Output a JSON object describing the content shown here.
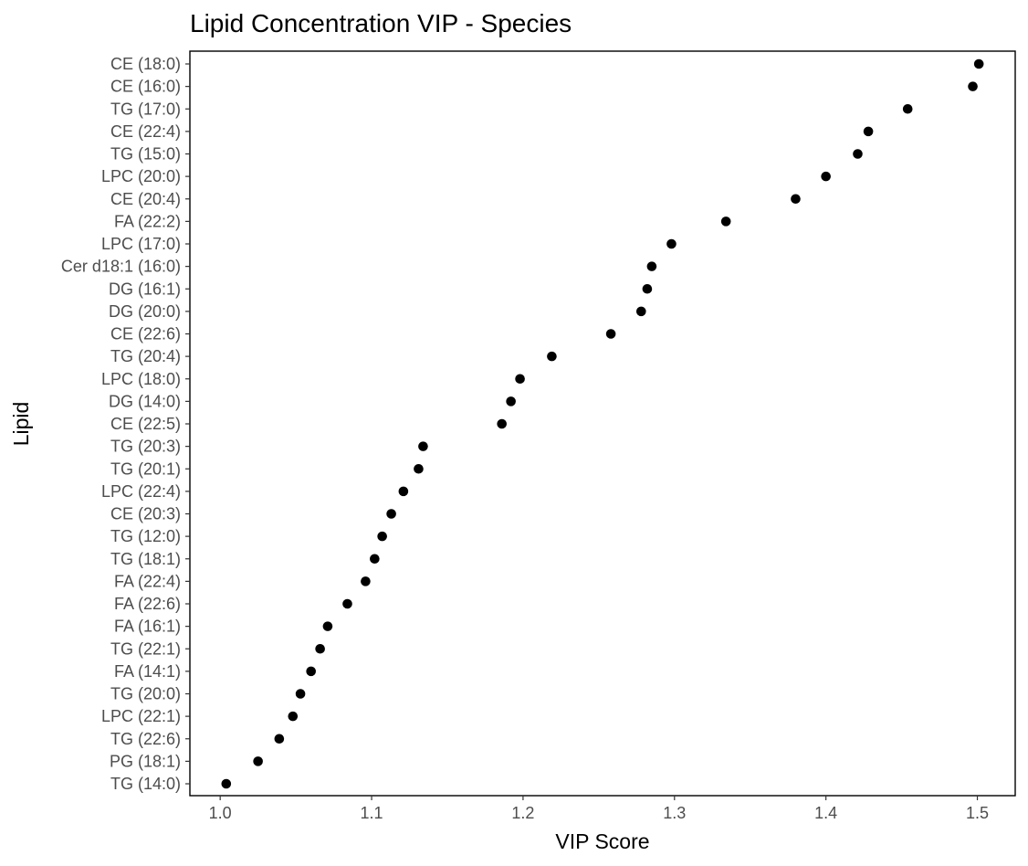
{
  "chart_data": {
    "type": "scatter",
    "title": "Lipid Concentration VIP - Species",
    "xlabel": "VIP Score",
    "ylabel": "Lipid",
    "xlim": [
      0.98,
      1.525
    ],
    "xticks": [
      1.0,
      1.1,
      1.2,
      1.3,
      1.4,
      1.5
    ],
    "xtick_labels": [
      "1.0",
      "1.1",
      "1.2",
      "1.3",
      "1.4",
      "1.5"
    ],
    "grid": false,
    "legend": "none",
    "point_color": "#000000",
    "categories": [
      "CE (18:0)",
      "CE (16:0)",
      "TG (17:0)",
      "CE (22:4)",
      "TG (15:0)",
      "LPC (20:0)",
      "CE (20:4)",
      "FA (22:2)",
      "LPC (17:0)",
      "Cer d18:1 (16:0)",
      "DG (16:1)",
      "DG (20:0)",
      "CE (22:6)",
      "TG (20:4)",
      "LPC (18:0)",
      "DG (14:0)",
      "CE (22:5)",
      "TG (20:3)",
      "TG (20:1)",
      "LPC (22:4)",
      "CE (20:3)",
      "TG (12:0)",
      "TG (18:1)",
      "FA (22:4)",
      "FA (22:6)",
      "FA (16:1)",
      "TG (22:1)",
      "FA (14:1)",
      "TG (20:0)",
      "LPC (22:1)",
      "TG (22:6)",
      "PG (18:1)",
      "TG (14:0)"
    ],
    "values": [
      1.501,
      1.497,
      1.454,
      1.428,
      1.421,
      1.4,
      1.38,
      1.334,
      1.298,
      1.285,
      1.282,
      1.278,
      1.258,
      1.219,
      1.198,
      1.192,
      1.186,
      1.134,
      1.131,
      1.121,
      1.113,
      1.107,
      1.102,
      1.096,
      1.084,
      1.071,
      1.066,
      1.06,
      1.053,
      1.048,
      1.039,
      1.025,
      1.004
    ]
  }
}
